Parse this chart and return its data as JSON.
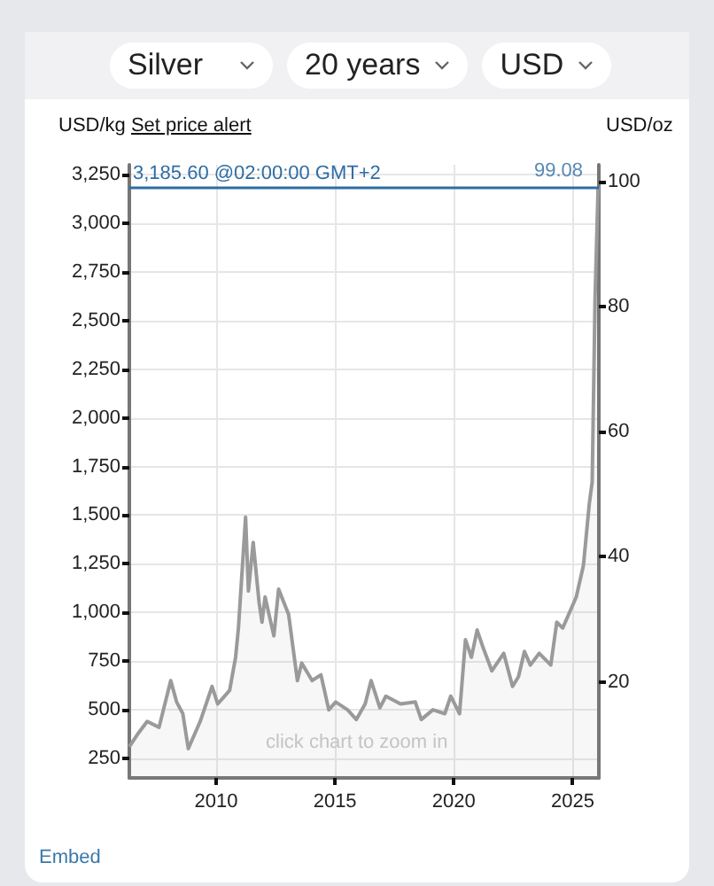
{
  "chart_data": {
    "type": "area",
    "ylabel": "USD/kg",
    "y2label": "USD/oz",
    "annotations": [
      "Silver",
      "20 years",
      "USD",
      "Set price alert",
      "click chart to zoom in",
      "Embed",
      {
        "text": "99.08",
        "x": 2026.1,
        "y": 3185.6
      }
    ],
    "series": [
      {
        "color": "#9a9a9a",
        "x": [
          2006.35,
          2006.73,
          2007.1,
          2007.6,
          2008.09,
          2008.34,
          2008.6,
          2008.83,
          2009.33,
          2009.83,
          2010.07,
          2010.57,
          2010.82,
          2010.94,
          2011.24,
          2011.36,
          2011.56,
          2011.81,
          2011.93,
          2012.06,
          2012.43,
          2012.63,
          2013.05,
          2013.42,
          2013.6,
          2014.04,
          2014.41,
          2014.74,
          2015.03,
          2015.53,
          2015.9,
          2016.27,
          2016.52,
          2016.89,
          2017.14,
          2017.76,
          2018.38,
          2018.63,
          2019.12,
          2019.62,
          2019.87,
          2020.24,
          2020.49,
          2020.74,
          2020.98,
          2021.23,
          2021.6,
          2022.1,
          2022.47,
          2022.72,
          2022.97,
          2023.22,
          2023.59,
          2024.08,
          2024.33,
          2024.58,
          2024.83,
          2025.15,
          2025.45,
          2025.7,
          2025.82,
          2025.94,
          2026.07
        ],
        "values": [
          310,
          380,
          440,
          410,
          650,
          540,
          480,
          300,
          440,
          620,
          530,
          600,
          770,
          920,
          1490,
          1110,
          1360,
          1050,
          950,
          1080,
          880,
          1120,
          990,
          650,
          740,
          650,
          680,
          500,
          540,
          500,
          450,
          530,
          650,
          510,
          570,
          530,
          540,
          450,
          500,
          480,
          570,
          480,
          860,
          770,
          910,
          820,
          700,
          790,
          620,
          670,
          800,
          730,
          790,
          730,
          950,
          920,
          990,
          1080,
          1240,
          1560,
          1670,
          2610,
          3185.6
        ]
      }
    ],
    "xlim": [
      2006.35,
      2026.1
    ],
    "xticks": [
      2010,
      2015,
      2020,
      2025
    ],
    "ylim": [
      150,
      3300
    ],
    "yticks": [
      250,
      500,
      750,
      {
        "value": 1000,
        "label": "1,000"
      },
      {
        "value": 1250,
        "label": "1,250"
      },
      {
        "value": 1500,
        "label": "1,500"
      },
      {
        "value": 1750,
        "label": "1,750"
      },
      {
        "value": 2000,
        "label": "2,000"
      },
      {
        "value": 2250,
        "label": "2,250"
      },
      {
        "value": 2500,
        "label": "2,500"
      },
      {
        "value": 2750,
        "label": "2,750"
      },
      {
        "value": 3000,
        "label": "3,000"
      },
      {
        "value": 3250,
        "label": "3,250"
      }
    ],
    "y2lim": [
      4.67,
      102.64
    ],
    "y2ticks": [
      20,
      40,
      60,
      80,
      100
    ],
    "ref_lines": [
      {
        "axis": "y",
        "value": 3185.6,
        "label": "3,185.60 @02:00:00 GMT+2",
        "color": "#2e6da4"
      }
    ],
    "grid": true,
    "marker": "none",
    "line_style": "solid"
  }
}
